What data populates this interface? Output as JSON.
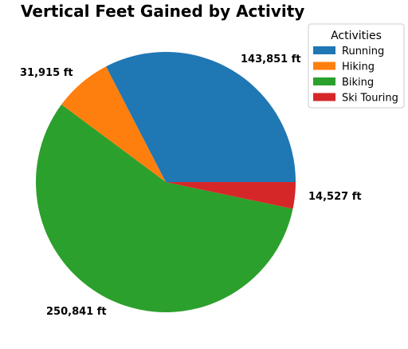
{
  "chart_data": {
    "type": "pie",
    "title": "Vertical Feet Gained by Activity",
    "series": [
      {
        "name": "Running",
        "value": 143851,
        "label": "143,851 ft",
        "color": "#1f77b4"
      },
      {
        "name": "Hiking",
        "value": 31915,
        "label": "31,915 ft",
        "color": "#ff7f0e"
      },
      {
        "name": "Biking",
        "value": 250841,
        "label": "250,841 ft",
        "color": "#2ca02c"
      },
      {
        "name": "Ski Touring",
        "value": 14527,
        "label": "14,527 ft",
        "color": "#d62728"
      }
    ],
    "legend": {
      "title": "Activities",
      "placement": "top-right"
    },
    "start_angle_deg": 0,
    "direction": "counterclockwise"
  }
}
